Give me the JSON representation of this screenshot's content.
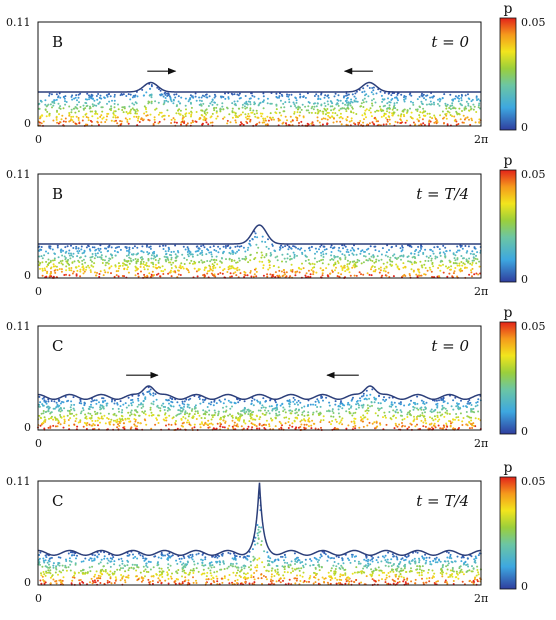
{
  "chart_data": [
    {
      "type": "scatter",
      "panel_label": "B",
      "time_label": "t = 0",
      "xlim": [
        0,
        6.2832
      ],
      "ylim": [
        0,
        0.11
      ],
      "x_ticks": [
        "0",
        "2π"
      ],
      "y_ticks": [
        "0",
        "0.11"
      ],
      "surface": {
        "baseline": 0.036,
        "peaks": [
          {
            "x": 1.6,
            "height": 0.01,
            "width": 0.14
          },
          {
            "x": 4.7,
            "height": 0.01,
            "width": 0.14
          }
        ],
        "ripple": 0
      },
      "arrows": [
        {
          "x_from": 1.55,
          "x_to": 1.95,
          "y": 0.058
        },
        {
          "x_from": 4.75,
          "x_to": 4.35,
          "y": 0.058
        }
      ],
      "colorbar": {
        "title": "p",
        "min": 0,
        "max": 0.05,
        "ticks": [
          "0",
          "0.05"
        ]
      }
    },
    {
      "type": "scatter",
      "panel_label": "B",
      "time_label": "t = T/4",
      "xlim": [
        0,
        6.2832
      ],
      "ylim": [
        0,
        0.11
      ],
      "x_ticks": [
        "0",
        "2π"
      ],
      "y_ticks": [
        "0",
        "0.11"
      ],
      "surface": {
        "baseline": 0.036,
        "peaks": [
          {
            "x": 3.14,
            "height": 0.02,
            "width": 0.14
          }
        ],
        "ripple": 0
      },
      "arrows": [],
      "colorbar": {
        "title": "p",
        "min": 0,
        "max": 0.05,
        "ticks": [
          "0",
          "0.05"
        ]
      }
    },
    {
      "type": "scatter",
      "panel_label": "C",
      "time_label": "t = 0",
      "xlim": [
        0,
        6.2832
      ],
      "ylim": [
        0,
        0.11
      ],
      "x_ticks": [
        "0",
        "2π"
      ],
      "y_ticks": [
        "0",
        "0.11"
      ],
      "surface": {
        "baseline": 0.035,
        "peaks": [
          {
            "x": 1.57,
            "height": 0.014,
            "width": 0.11
          },
          {
            "x": 4.71,
            "height": 0.014,
            "width": 0.11
          }
        ],
        "ripple": 0.0025
      },
      "arrows": [
        {
          "x_from": 1.25,
          "x_to": 1.7,
          "y": 0.058
        },
        {
          "x_from": 4.55,
          "x_to": 4.1,
          "y": 0.058
        }
      ],
      "colorbar": {
        "title": "p",
        "min": 0,
        "max": 0.05,
        "ticks": [
          "0",
          "0.05"
        ]
      }
    },
    {
      "type": "scatter",
      "panel_label": "C",
      "time_label": "t = T/4",
      "xlim": [
        0,
        6.2832
      ],
      "ylim": [
        0,
        0.11
      ],
      "x_ticks": [
        "0",
        "2π"
      ],
      "y_ticks": [
        "0",
        "0.11"
      ],
      "surface": {
        "baseline": 0.034,
        "peaks": [
          {
            "x": 3.14,
            "height": 0.074,
            "width": 0.08,
            "sharp": true
          }
        ],
        "ripple": 0.0025
      },
      "arrows": [],
      "colorbar": {
        "title": "p",
        "min": 0,
        "max": 0.05,
        "ticks": [
          "0",
          "0.05"
        ]
      }
    }
  ]
}
